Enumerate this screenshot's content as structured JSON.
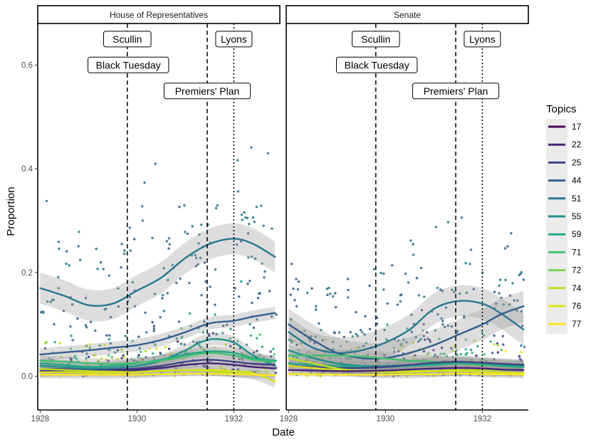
{
  "chart_data": {
    "type": "scatter",
    "x_label": "Date",
    "y_label": "Proportion",
    "x_ticks": [
      {
        "value": 1928,
        "label": "1928"
      },
      {
        "value": 1930,
        "label": "1930"
      },
      {
        "value": 1932,
        "label": "1932"
      }
    ],
    "y_ticks": [
      {
        "value": 0.0,
        "label": "0.0"
      },
      {
        "value": 0.2,
        "label": "0.2"
      },
      {
        "value": 0.4,
        "label": "0.4"
      },
      {
        "value": 0.6,
        "label": "0.6"
      }
    ],
    "x_range": [
      1927.95,
      1932.95
    ],
    "y_range": [
      -0.065,
      0.68
    ],
    "legend": {
      "title": "Topics",
      "items": [
        {
          "label": "17",
          "color": "#440154"
        },
        {
          "label": "22",
          "color": "#482475"
        },
        {
          "label": "25",
          "color": "#414487"
        },
        {
          "label": "44",
          "color": "#355f8d"
        },
        {
          "label": "51",
          "color": "#2a788e"
        },
        {
          "label": "55",
          "color": "#21918c"
        },
        {
          "label": "59",
          "color": "#22a884"
        },
        {
          "label": "71",
          "color": "#44bf70"
        },
        {
          "label": "72",
          "color": "#7ad151"
        },
        {
          "label": "74",
          "color": "#bddf26"
        },
        {
          "label": "76",
          "color": "#d8e219"
        },
        {
          "label": "77",
          "color": "#fde725"
        }
      ]
    },
    "events": [
      {
        "name": "Scullin",
        "date": 1929.8,
        "line": "dashed",
        "label_y": 0.65
      },
      {
        "name": "Black Tuesday",
        "date": 1929.82,
        "line": "dashed",
        "label_y": 0.6
      },
      {
        "name": "Premiers' Plan",
        "date": 1931.45,
        "line": "dashed",
        "label_y": 0.55
      },
      {
        "name": "Lyons",
        "date": 1932.0,
        "line": "dotted",
        "label_y": 0.65
      }
    ],
    "panels": [
      {
        "title": "House of Representatives",
        "smooth_lines": [
          {
            "topic": "51",
            "x": [
              1928.0,
              1928.5,
              1929.0,
              1929.5,
              1930.0,
              1930.5,
              1931.0,
              1931.5,
              1932.0,
              1932.4,
              1932.85
            ],
            "y": [
              0.17,
              0.155,
              0.137,
              0.14,
              0.165,
              0.19,
              0.228,
              0.255,
              0.265,
              0.255,
              0.23
            ],
            "ci": 0.03
          },
          {
            "topic": "44",
            "x": [
              1928.0,
              1928.5,
              1929.0,
              1929.5,
              1930.0,
              1930.5,
              1931.0,
              1931.5,
              1932.0,
              1932.4,
              1932.85
            ],
            "y": [
              0.042,
              0.046,
              0.05,
              0.055,
              0.06,
              0.07,
              0.085,
              0.102,
              0.107,
              0.115,
              0.122
            ],
            "ci": 0.012
          },
          {
            "topic": "55",
            "x": [
              1928.0,
              1928.5,
              1929.0,
              1929.5,
              1930.0,
              1930.5,
              1931.0,
              1931.3,
              1931.6,
              1932.0,
              1932.4,
              1932.85
            ],
            "y": [
              0.02,
              0.018,
              0.015,
              0.016,
              0.02,
              0.03,
              0.05,
              0.065,
              0.072,
              0.065,
              0.04,
              0.02
            ],
            "ci": 0.012
          },
          {
            "topic": "59",
            "x": [
              1928.0,
              1928.5,
              1929.0,
              1929.5,
              1930.0,
              1930.5,
              1931.0,
              1931.5,
              1932.0,
              1932.4,
              1932.85
            ],
            "y": [
              0.025,
              0.022,
              0.018,
              0.02,
              0.025,
              0.032,
              0.042,
              0.048,
              0.045,
              0.035,
              0.03
            ],
            "ci": 0.01
          },
          {
            "topic": "71",
            "x": [
              1928.0,
              1928.5,
              1929.0,
              1929.5,
              1930.0,
              1930.5,
              1931.0,
              1931.5,
              1932.0,
              1932.4,
              1932.85
            ],
            "y": [
              0.03,
              0.028,
              0.025,
              0.024,
              0.026,
              0.03,
              0.038,
              0.045,
              0.04,
              0.032,
              0.028
            ],
            "ci": 0.01
          },
          {
            "topic": "25",
            "x": [
              1928.0,
              1928.5,
              1929.0,
              1929.5,
              1930.0,
              1930.5,
              1931.0,
              1931.5,
              1932.0,
              1932.4,
              1932.85
            ],
            "y": [
              0.015,
              0.014,
              0.012,
              0.013,
              0.015,
              0.02,
              0.028,
              0.032,
              0.028,
              0.024,
              0.022
            ],
            "ci": 0.008
          },
          {
            "topic": "22",
            "x": [
              1928.0,
              1928.5,
              1929.0,
              1929.5,
              1930.0,
              1930.5,
              1931.0,
              1931.5,
              1932.0,
              1932.4,
              1932.85
            ],
            "y": [
              0.01,
              0.01,
              0.009,
              0.01,
              0.012,
              0.016,
              0.022,
              0.025,
              0.022,
              0.018,
              0.015
            ],
            "ci": 0.007
          },
          {
            "topic": "74",
            "x": [
              1928.0,
              1928.5,
              1929.0,
              1929.5,
              1930.0,
              1930.5,
              1931.0,
              1931.5,
              1932.0,
              1932.4,
              1932.85
            ],
            "y": [
              0.015,
              0.012,
              0.01,
              0.009,
              0.008,
              0.01,
              0.012,
              0.01,
              0.006,
              0.004,
              0.002
            ],
            "ci": 0.008
          },
          {
            "topic": "76",
            "x": [
              1928.0,
              1928.5,
              1929.0,
              1929.5,
              1930.0,
              1930.5,
              1931.0,
              1931.5,
              1932.0,
              1932.4,
              1932.85
            ],
            "y": [
              0.008,
              0.008,
              0.007,
              0.007,
              0.008,
              0.01,
              0.012,
              0.012,
              0.01,
              0.006,
              -0.01
            ],
            "ci": 0.012
          },
          {
            "topic": "77",
            "x": [
              1928.0,
              1928.5,
              1929.0,
              1929.5,
              1930.0,
              1930.5,
              1931.0,
              1931.5,
              1932.0,
              1932.4,
              1932.85
            ],
            "y": [
              0.003,
              0.003,
              0.003,
              0.003,
              0.003,
              0.004,
              0.005,
              0.005,
              0.004,
              0.003,
              0.002
            ],
            "ci": 0.004
          }
        ]
      },
      {
        "title": "Senate",
        "smooth_lines": [
          {
            "topic": "51",
            "x": [
              1928.0,
              1928.5,
              1929.0,
              1929.5,
              1930.0,
              1930.5,
              1931.0,
              1931.5,
              1932.0,
              1932.4,
              1932.85
            ],
            "y": [
              0.085,
              0.055,
              0.045,
              0.05,
              0.065,
              0.09,
              0.13,
              0.145,
              0.14,
              0.12,
              0.09
            ],
            "ci": 0.03
          },
          {
            "topic": "44",
            "x": [
              1928.0,
              1928.5,
              1929.0,
              1929.5,
              1930.0,
              1930.5,
              1931.0,
              1931.5,
              1932.0,
              1932.4,
              1932.85
            ],
            "y": [
              0.1,
              0.07,
              0.045,
              0.035,
              0.035,
              0.045,
              0.06,
              0.08,
              0.1,
              0.12,
              0.135
            ],
            "ci": 0.03
          },
          {
            "topic": "55",
            "x": [
              1928.0,
              1928.5,
              1929.0,
              1929.5,
              1930.0,
              1930.5,
              1931.0,
              1931.5,
              1932.0,
              1932.4,
              1932.85
            ],
            "y": [
              0.05,
              0.035,
              0.025,
              0.02,
              0.02,
              0.022,
              0.025,
              0.028,
              0.025,
              0.022,
              0.02
            ],
            "ci": 0.012
          },
          {
            "topic": "71",
            "x": [
              1928.0,
              1928.5,
              1929.0,
              1929.5,
              1930.0,
              1930.5,
              1931.0,
              1931.5,
              1932.0,
              1932.4,
              1932.85
            ],
            "y": [
              0.04,
              0.04,
              0.04,
              0.038,
              0.034,
              0.03,
              0.028,
              0.025,
              0.022,
              0.02,
              0.018
            ],
            "ci": 0.012
          },
          {
            "topic": "59",
            "x": [
              1928.0,
              1928.5,
              1929.0,
              1929.5,
              1930.0,
              1930.5,
              1931.0,
              1931.5,
              1932.0,
              1932.4,
              1932.85
            ],
            "y": [
              0.025,
              0.022,
              0.02,
              0.018,
              0.018,
              0.02,
              0.022,
              0.025,
              0.024,
              0.02,
              0.018
            ],
            "ci": 0.01
          },
          {
            "topic": "25",
            "x": [
              1928.0,
              1928.5,
              1929.0,
              1929.5,
              1930.0,
              1930.5,
              1931.0,
              1931.5,
              1932.0,
              1932.4,
              1932.85
            ],
            "y": [
              0.02,
              0.018,
              0.016,
              0.016,
              0.018,
              0.022,
              0.026,
              0.028,
              0.026,
              0.024,
              0.022
            ],
            "ci": 0.01
          },
          {
            "topic": "74",
            "x": [
              1928.0,
              1928.5,
              1929.0,
              1929.5,
              1930.0,
              1930.5,
              1931.0,
              1931.5,
              1932.0,
              1932.4,
              1932.85
            ],
            "y": [
              0.035,
              0.025,
              0.015,
              0.01,
              0.008,
              0.008,
              0.01,
              0.012,
              0.012,
              0.012,
              0.012
            ],
            "ci": 0.012
          },
          {
            "topic": "76",
            "x": [
              1928.0,
              1928.5,
              1929.0,
              1929.5,
              1930.0,
              1930.5,
              1931.0,
              1931.5,
              1932.0,
              1932.4,
              1932.85
            ],
            "y": [
              0.02,
              0.016,
              0.012,
              0.01,
              0.01,
              0.01,
              0.01,
              0.01,
              0.008,
              0.007,
              0.006
            ],
            "ci": 0.01
          },
          {
            "topic": "22",
            "x": [
              1928.0,
              1928.5,
              1929.0,
              1929.5,
              1930.0,
              1930.5,
              1931.0,
              1931.5,
              1932.0,
              1932.4,
              1932.85
            ],
            "y": [
              0.012,
              0.011,
              0.01,
              0.01,
              0.011,
              0.013,
              0.015,
              0.016,
              0.015,
              0.013,
              0.012
            ],
            "ci": 0.008
          },
          {
            "topic": "77",
            "x": [
              1928.0,
              1928.5,
              1929.0,
              1929.5,
              1930.0,
              1930.5,
              1931.0,
              1931.5,
              1932.0,
              1932.4,
              1932.85
            ],
            "y": [
              0.004,
              0.004,
              0.003,
              0.003,
              0.003,
              0.004,
              0.004,
              0.005,
              0.004,
              0.004,
              0.003
            ],
            "ci": 0.004
          }
        ]
      }
    ]
  }
}
